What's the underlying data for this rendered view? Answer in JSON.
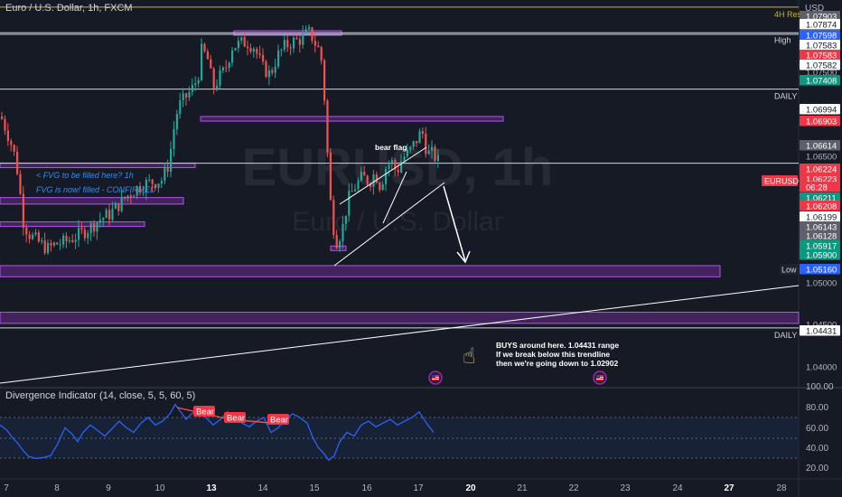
{
  "header": {
    "title": "Euro / U.S. Dollar, 1h, FXCM",
    "currency": "USD"
  },
  "watermark": {
    "symbol": "EURUSD, 1h",
    "name": "Euro / U.S. Dollar"
  },
  "colors": {
    "bull": "#26a69a",
    "bear": "#ef5350",
    "zone": "#7b2fa3",
    "zone_border": "#b157e8",
    "price_red": "#f23645",
    "price_green": "#089981",
    "price_gray": "#5d606b",
    "accent_blue": "#2962ff"
  },
  "levels": [
    {
      "price": 1.07874,
      "label": "4H Res",
      "color": "#c8b62c"
    },
    {
      "price": 1.07598,
      "label": "High",
      "color": "#d1d4dc"
    },
    {
      "price": 1.07582,
      "label": "",
      "color": "#d1d4dc"
    },
    {
      "price": 1.06994,
      "label": "DAILY",
      "color": "#d1d4dc"
    },
    {
      "price": 1.06199,
      "label": "",
      "color": "#d1d4dc"
    },
    {
      "price": 1.04431,
      "label": "DAILY",
      "color": "#d1d4dc"
    }
  ],
  "price_tags": [
    {
      "text": "1.07903",
      "bg": "#5d606b",
      "fg": "#ffffff"
    },
    {
      "text": "1.07874",
      "bg": "#ffffff",
      "fg": "#131722"
    },
    {
      "text": "1.07598",
      "bg": "#2962ff",
      "fg": "#ffffff"
    },
    {
      "text": "1.07583",
      "bg": "#ffffff",
      "fg": "#131722"
    },
    {
      "text": "1.07583",
      "bg": "#f23645",
      "fg": "#ffffff"
    },
    {
      "text": "1.07582",
      "bg": "#ffffff",
      "fg": "#131722"
    },
    {
      "text": "1.07500",
      "bg": "none",
      "fg": "#b2b5be"
    },
    {
      "text": "1.07408",
      "bg": "#089981",
      "fg": "#ffffff"
    },
    {
      "text": "1.06994",
      "bg": "#ffffff",
      "fg": "#131722"
    },
    {
      "text": "1.06903",
      "bg": "#f23645",
      "fg": "#ffffff"
    },
    {
      "text": "1.06614",
      "bg": "#5d606b",
      "fg": "#ffffff"
    },
    {
      "text": "1.06500",
      "bg": "none",
      "fg": "#b2b5be"
    },
    {
      "text": "1.06224",
      "bg": "#f23645",
      "fg": "#ffffff"
    },
    {
      "text": "1.06223",
      "bg": "#f23645",
      "fg": "#ffffff"
    },
    {
      "text": "06:28",
      "bg": "#f23645",
      "fg": "#ffffff"
    },
    {
      "text": "1.06211",
      "bg": "#089981",
      "fg": "#ffffff"
    },
    {
      "text": "1.06208",
      "bg": "#f23645",
      "fg": "#ffffff"
    },
    {
      "text": "1.06199",
      "bg": "#ffffff",
      "fg": "#131722"
    },
    {
      "text": "1.06143",
      "bg": "#5d606b",
      "fg": "#ffffff"
    },
    {
      "text": "1.06128",
      "bg": "#5d606b",
      "fg": "#ffffff"
    },
    {
      "text": "1.05917",
      "bg": "#089981",
      "fg": "#ffffff"
    },
    {
      "text": "1.05900",
      "bg": "#089981",
      "fg": "#ffffff"
    },
    {
      "text": "1.05160",
      "bg": "#2962ff",
      "fg": "#ffffff"
    },
    {
      "text": "1.05000",
      "bg": "none",
      "fg": "#b2b5be"
    },
    {
      "text": "1.04500",
      "bg": "none",
      "fg": "#b2b5be"
    },
    {
      "text": "1.04431",
      "bg": "#ffffff",
      "fg": "#131722"
    },
    {
      "text": "1.04000",
      "bg": "none",
      "fg": "#b2b5be"
    }
  ],
  "side_labels": {
    "eurusd": "EURUSD",
    "low": "Low"
  },
  "annotations": {
    "bear_flag": "bear flag",
    "fvg_1": "< FVG to be filled here? 1h",
    "fvg_2": "FVG is now! filled - CONFIRMED",
    "buys_1": "BUYS around here. 1.04431 range",
    "buys_2": "If we break below this trendline",
    "buys_3": "then we're going down to 1.02902"
  },
  "indicator": {
    "label": "Divergence Indicator (14, close, 5, 5, 60, 5)",
    "axis": [
      "100.00",
      "80.00",
      "60.00",
      "40.00",
      "20.00"
    ],
    "divergences": [
      "Bear",
      "Bear",
      "Bear"
    ]
  },
  "chart_data": {
    "type": "candlestick",
    "title": "Euro / U.S. Dollar, 1h, FXCM",
    "x_ticks": [
      "7",
      "8",
      "9",
      "10",
      "13",
      "14",
      "15",
      "16",
      "17",
      "20",
      "21",
      "22",
      "23",
      "24",
      "27",
      "28"
    ],
    "price_range": [
      1.038,
      1.0795
    ],
    "ohlc_path": [
      [
        0,
        1.067
      ],
      [
        4,
        1.066
      ],
      [
        10,
        1.0645
      ],
      [
        16,
        1.0625
      ],
      [
        20,
        1.06
      ],
      [
        24,
        1.056
      ],
      [
        30,
        1.0545
      ],
      [
        38,
        1.0538
      ],
      [
        46,
        1.0532
      ],
      [
        52,
        1.0528
      ],
      [
        60,
        1.0533
      ],
      [
        70,
        1.0535
      ],
      [
        80,
        1.054
      ],
      [
        90,
        1.0545
      ],
      [
        100,
        1.0552
      ],
      [
        110,
        1.056
      ],
      [
        120,
        1.0565
      ],
      [
        130,
        1.0575
      ],
      [
        140,
        1.0585
      ],
      [
        150,
        1.0593
      ],
      [
        160,
        1.0598
      ],
      [
        170,
        1.06
      ],
      [
        178,
        1.0602
      ],
      [
        186,
        1.062
      ],
      [
        190,
        1.065
      ],
      [
        196,
        1.068
      ],
      [
        204,
        1.069
      ],
      [
        212,
        1.07
      ],
      [
        218,
        1.0712
      ],
      [
        222,
        1.074
      ],
      [
        228,
        1.0735
      ],
      [
        232,
        1.0715
      ],
      [
        236,
        1.07
      ],
      [
        240,
        1.071
      ],
      [
        248,
        1.072
      ],
      [
        256,
        1.0745
      ],
      [
        264,
        1.0748
      ],
      [
        272,
        1.075
      ],
      [
        280,
        1.0745
      ],
      [
        290,
        1.0722
      ],
      [
        298,
        1.0715
      ],
      [
        306,
        1.0735
      ],
      [
        314,
        1.0745
      ],
      [
        322,
        1.075
      ],
      [
        330,
        1.0752
      ],
      [
        336,
        1.0757
      ],
      [
        342,
        1.076
      ],
      [
        348,
        1.0748
      ],
      [
        354,
        1.0738
      ],
      [
        358,
        1.069
      ],
      [
        362,
        1.062
      ],
      [
        366,
        1.056
      ],
      [
        372,
        1.0535
      ],
      [
        378,
        1.055
      ],
      [
        384,
        1.058
      ],
      [
        392,
        1.0595
      ],
      [
        400,
        1.0605
      ],
      [
        408,
        1.06
      ],
      [
        414,
        1.061
      ],
      [
        420,
        1.0595
      ],
      [
        426,
        1.0615
      ],
      [
        432,
        1.0622
      ],
      [
        438,
        1.061
      ],
      [
        444,
        1.0625
      ],
      [
        452,
        1.0632
      ],
      [
        460,
        1.0645
      ],
      [
        466,
        1.0655
      ],
      [
        472,
        1.063
      ],
      [
        478,
        1.063
      ],
      [
        484,
        1.0622
      ]
    ],
    "zones": [
      {
        "x": [
          0,
          216
        ],
        "price": [
          1.062,
          1.0617
        ]
      },
      {
        "x": [
          0,
          203
        ],
        "price": [
          1.0583,
          1.0576
        ]
      },
      {
        "x": [
          0,
          160
        ],
        "price": [
          1.0557,
          1.0552
        ]
      },
      {
        "x": [
          259,
          378
        ],
        "price": [
          1.0762,
          1.0758
        ]
      },
      {
        "x": [
          222,
          557
        ],
        "price": [
          1.067,
          1.0665
        ]
      },
      {
        "x": [
          0,
          797
        ],
        "price": [
          1.051,
          1.0498
        ]
      },
      {
        "x": [
          0,
          884
        ],
        "price": [
          1.046,
          1.0448
        ]
      },
      {
        "x": [
          366,
          383
        ],
        "price": [
          1.0531,
          1.0527
        ]
      }
    ],
    "indicator_series": {
      "x": [
        0,
        8,
        14,
        20,
        26,
        32,
        40,
        48,
        56,
        64,
        72,
        80,
        86,
        92,
        100,
        108,
        116,
        124,
        132,
        140,
        148,
        156,
        164,
        172,
        180,
        188,
        194,
        200,
        206,
        212,
        220,
        228,
        236,
        244,
        252,
        260,
        268,
        276,
        284,
        292,
        300,
        308,
        316,
        324,
        332,
        340,
        346,
        352,
        358,
        364,
        370,
        376,
        384,
        392,
        400,
        408,
        416,
        424,
        432,
        440,
        448,
        456,
        464,
        472,
        480
      ],
      "values": [
        58,
        52,
        44,
        38,
        30,
        24,
        22,
        23,
        25,
        38,
        55,
        48,
        40,
        50,
        58,
        52,
        46,
        54,
        62,
        55,
        50,
        60,
        66,
        58,
        62,
        70,
        80,
        72,
        64,
        70,
        74,
        66,
        58,
        64,
        72,
        68,
        60,
        56,
        62,
        66,
        50,
        55,
        64,
        70,
        66,
        60,
        45,
        34,
        28,
        20,
        25,
        40,
        50,
        46,
        58,
        62,
        56,
        60,
        64,
        58,
        62,
        66,
        72,
        60,
        50
      ]
    }
  }
}
